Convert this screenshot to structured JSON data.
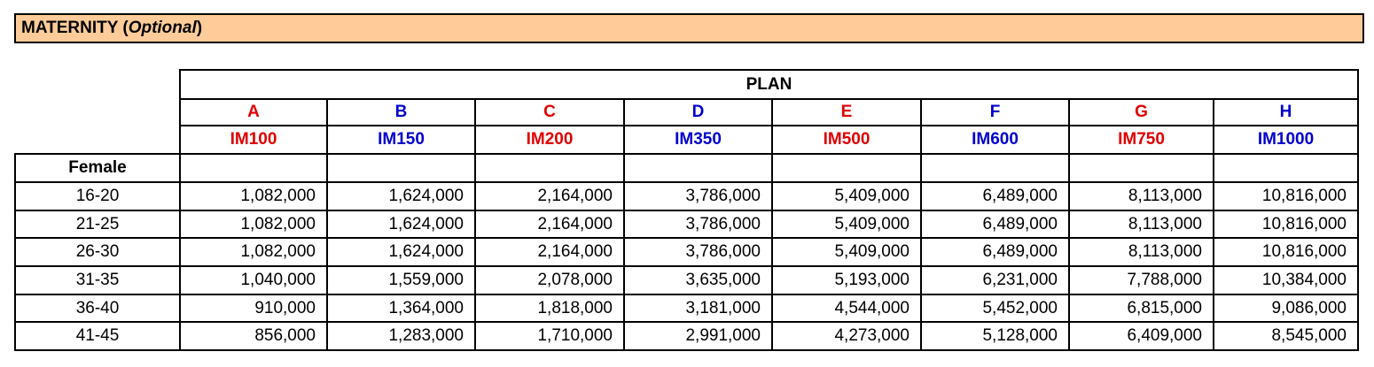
{
  "section": {
    "title_main": "MATERNITY (",
    "title_italic": "Optional",
    "title_end": ")",
    "background": "#FFCC99"
  },
  "table": {
    "group_header": "PLAN",
    "row_group_label": "Female",
    "colors": {
      "red": "#E00000",
      "blue": "#0000CC"
    },
    "plans": [
      {
        "letter": "A",
        "code": "IM100",
        "color": "red"
      },
      {
        "letter": "B",
        "code": "IM150",
        "color": "blue"
      },
      {
        "letter": "C",
        "code": "IM200",
        "color": "red"
      },
      {
        "letter": "D",
        "code": "IM350",
        "color": "blue"
      },
      {
        "letter": "E",
        "code": "IM500",
        "color": "red"
      },
      {
        "letter": "F",
        "code": "IM600",
        "color": "blue"
      },
      {
        "letter": "G",
        "code": "IM750",
        "color": "red"
      },
      {
        "letter": "H",
        "code": "IM1000",
        "color": "blue"
      }
    ],
    "rows": [
      {
        "age": "16-20",
        "values": [
          "1,082,000",
          "1,624,000",
          "2,164,000",
          "3,786,000",
          "5,409,000",
          "6,489,000",
          "8,113,000",
          "10,816,000"
        ]
      },
      {
        "age": "21-25",
        "values": [
          "1,082,000",
          "1,624,000",
          "2,164,000",
          "3,786,000",
          "5,409,000",
          "6,489,000",
          "8,113,000",
          "10,816,000"
        ]
      },
      {
        "age": "26-30",
        "values": [
          "1,082,000",
          "1,624,000",
          "2,164,000",
          "3,786,000",
          "5,409,000",
          "6,489,000",
          "8,113,000",
          "10,816,000"
        ]
      },
      {
        "age": "31-35",
        "values": [
          "1,040,000",
          "1,559,000",
          "2,078,000",
          "3,635,000",
          "5,193,000",
          "6,231,000",
          "7,788,000",
          "10,384,000"
        ]
      },
      {
        "age": "36-40",
        "values": [
          "910,000",
          "1,364,000",
          "1,818,000",
          "3,181,000",
          "4,544,000",
          "5,452,000",
          "6,815,000",
          "9,086,000"
        ]
      },
      {
        "age": "41-45",
        "values": [
          "856,000",
          "1,283,000",
          "1,710,000",
          "2,991,000",
          "4,273,000",
          "5,128,000",
          "6,409,000",
          "8,545,000"
        ]
      }
    ]
  }
}
